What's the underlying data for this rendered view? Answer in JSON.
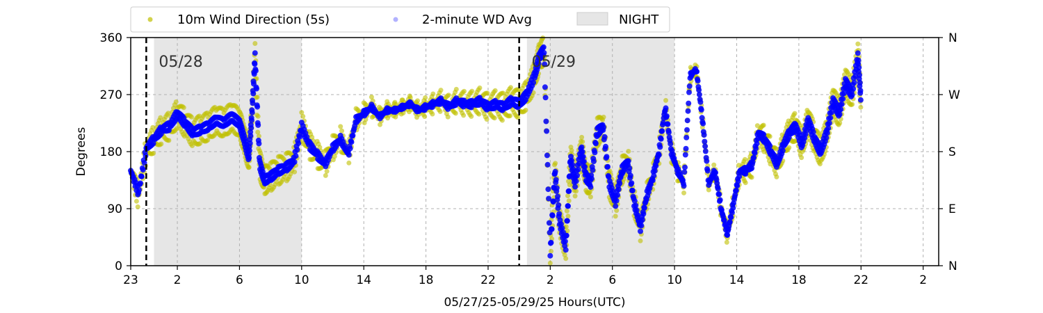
{
  "chart_data": {
    "type": "scatter",
    "ylabel": "Degrees",
    "xlabel": "05/27/25-05/29/25  Hours(UTC)",
    "ylim": [
      0,
      360
    ],
    "y_ticks": [
      0,
      90,
      180,
      270,
      360
    ],
    "y_ticks_right": [
      "N",
      "E",
      "S",
      "W",
      "N"
    ],
    "x_range_hours": [
      23,
      50
    ],
    "x_ticks": [
      {
        "hour": 23,
        "label": "23"
      },
      {
        "hour": 26,
        "label": "2"
      },
      {
        "hour": 30,
        "label": "6"
      },
      {
        "hour": 34,
        "label": "10"
      },
      {
        "hour": 38,
        "label": "14"
      },
      {
        "hour": 42,
        "label": "18"
      },
      {
        "hour": 46,
        "label": "22"
      },
      {
        "hour": 50,
        "label": "2"
      },
      {
        "hour": 54,
        "label": "6"
      },
      {
        "hour": 58,
        "label": "10"
      },
      {
        "hour": 62,
        "label": "14"
      },
      {
        "hour": 66,
        "label": "18"
      },
      {
        "hour": 70,
        "label": "22"
      },
      {
        "hour": 74,
        "label": "2"
      }
    ],
    "x_domain_hours": [
      23,
      75
    ],
    "grid": true,
    "legend_position": "top",
    "day_markers": [
      {
        "hour": 24,
        "label": "05/28"
      },
      {
        "hour": 48,
        "label": "05/29"
      }
    ],
    "night_spans": [
      [
        24.5,
        34.0
      ],
      [
        48.5,
        58.0
      ]
    ],
    "series": [
      {
        "name": "10m Wind Direction (5s)",
        "color": "#bfbf00",
        "x": [
          23.0,
          23.5,
          24.0,
          24.5,
          25.0,
          25.5,
          26.0,
          26.5,
          27.0,
          27.5,
          28.0,
          28.5,
          29.0,
          29.5,
          30.0,
          30.3,
          30.6,
          30.8,
          31.0,
          31.3,
          31.6,
          32.0,
          32.5,
          33.0,
          33.5,
          34.0,
          34.5,
          35.0,
          35.5,
          36.0,
          36.5,
          37.0,
          37.5,
          38.0,
          38.5,
          39.0,
          39.5,
          40.0,
          40.5,
          41.0,
          41.5,
          42.0,
          42.5,
          43.0,
          43.5,
          44.0,
          44.5,
          45.0,
          45.5,
          46.0,
          46.5,
          47.0,
          47.5,
          48.0,
          48.5,
          49.0,
          49.3,
          49.6,
          50.0,
          50.3,
          50.6,
          51.0,
          51.3,
          51.6,
          52.0,
          52.3,
          52.6,
          53.0,
          53.4,
          53.8,
          54.2,
          54.6,
          55.0,
          55.4,
          55.8,
          56.2,
          56.6,
          57.0,
          57.4,
          57.8,
          58.2,
          58.6,
          59.0,
          59.4,
          59.8,
          60.2,
          60.6,
          61.0,
          61.4,
          61.8,
          62.2,
          62.6,
          63.0,
          63.4,
          63.8,
          64.2,
          64.6,
          65.0,
          65.4,
          65.8,
          66.2,
          66.6,
          67.0,
          67.4,
          67.8,
          68.2,
          68.6,
          69.0,
          69.4,
          69.8,
          70.0
        ],
        "y": [
          150,
          110,
          185,
          200,
          215,
          220,
          240,
          225,
          210,
          215,
          220,
          230,
          225,
          235,
          225,
          200,
          170,
          240,
          330,
          160,
          135,
          140,
          150,
          155,
          165,
          220,
          190,
          175,
          160,
          185,
          200,
          175,
          230,
          240,
          250,
          235,
          245,
          245,
          250,
          255,
          245,
          250,
          255,
          260,
          250,
          260,
          255,
          255,
          260,
          250,
          255,
          250,
          260,
          255,
          270,
          300,
          330,
          340,
          20,
          150,
          70,
          30,
          170,
          130,
          185,
          140,
          130,
          210,
          220,
          130,
          100,
          150,
          165,
          100,
          60,
          110,
          140,
          180,
          250,
          180,
          150,
          130,
          300,
          310,
          230,
          130,
          150,
          90,
          50,
          100,
          150,
          150,
          160,
          210,
          200,
          180,
          160,
          190,
          210,
          220,
          190,
          230,
          200,
          180,
          210,
          260,
          240,
          290,
          270,
          330,
          260
        ]
      },
      {
        "name": "2-minute WD Avg",
        "color": "#0000ff",
        "x": [
          23.0,
          23.5,
          24.0,
          24.5,
          25.0,
          25.5,
          26.0,
          26.5,
          27.0,
          27.5,
          28.0,
          28.5,
          29.0,
          29.5,
          30.0,
          30.3,
          30.6,
          30.8,
          31.0,
          31.3,
          31.6,
          32.0,
          32.5,
          33.0,
          33.5,
          34.0,
          34.5,
          35.0,
          35.5,
          36.0,
          36.5,
          37.0,
          37.5,
          38.0,
          38.5,
          39.0,
          39.5,
          40.0,
          40.5,
          41.0,
          41.5,
          42.0,
          42.5,
          43.0,
          43.5,
          44.0,
          44.5,
          45.0,
          45.5,
          46.0,
          46.5,
          47.0,
          47.5,
          48.0,
          48.5,
          49.0,
          49.3,
          49.6,
          50.0,
          50.3,
          50.6,
          51.0,
          51.3,
          51.6,
          52.0,
          52.3,
          52.6,
          53.0,
          53.4,
          53.8,
          54.2,
          54.6,
          55.0,
          55.4,
          55.8,
          56.2,
          56.6,
          57.0,
          57.4,
          57.8,
          58.2,
          58.6,
          59.0,
          59.4,
          59.8,
          60.2,
          60.6,
          61.0,
          61.4,
          61.8,
          62.2,
          62.6,
          63.0,
          63.4,
          63.8,
          64.2,
          64.6,
          65.0,
          65.4,
          65.8,
          66.2,
          66.6,
          67.0,
          67.4,
          67.8,
          68.2,
          68.6,
          69.0,
          69.4,
          69.8,
          70.0
        ],
        "y": [
          150,
          115,
          185,
          200,
          215,
          220,
          240,
          225,
          210,
          215,
          220,
          230,
          225,
          235,
          225,
          200,
          170,
          240,
          330,
          160,
          135,
          140,
          150,
          155,
          165,
          220,
          190,
          175,
          160,
          185,
          200,
          175,
          230,
          240,
          250,
          235,
          245,
          245,
          250,
          255,
          245,
          250,
          255,
          260,
          250,
          260,
          255,
          255,
          260,
          250,
          255,
          250,
          260,
          255,
          270,
          300,
          330,
          340,
          20,
          150,
          70,
          30,
          170,
          130,
          185,
          140,
          130,
          210,
          220,
          130,
          100,
          150,
          165,
          100,
          60,
          110,
          140,
          180,
          250,
          180,
          150,
          130,
          300,
          310,
          230,
          130,
          150,
          90,
          50,
          100,
          150,
          150,
          160,
          210,
          200,
          180,
          160,
          190,
          210,
          220,
          190,
          230,
          200,
          180,
          210,
          260,
          240,
          290,
          270,
          330,
          260
        ]
      }
    ],
    "legend": {
      "night_label": "NIGHT",
      "night_color": "#e6e6e6"
    }
  }
}
